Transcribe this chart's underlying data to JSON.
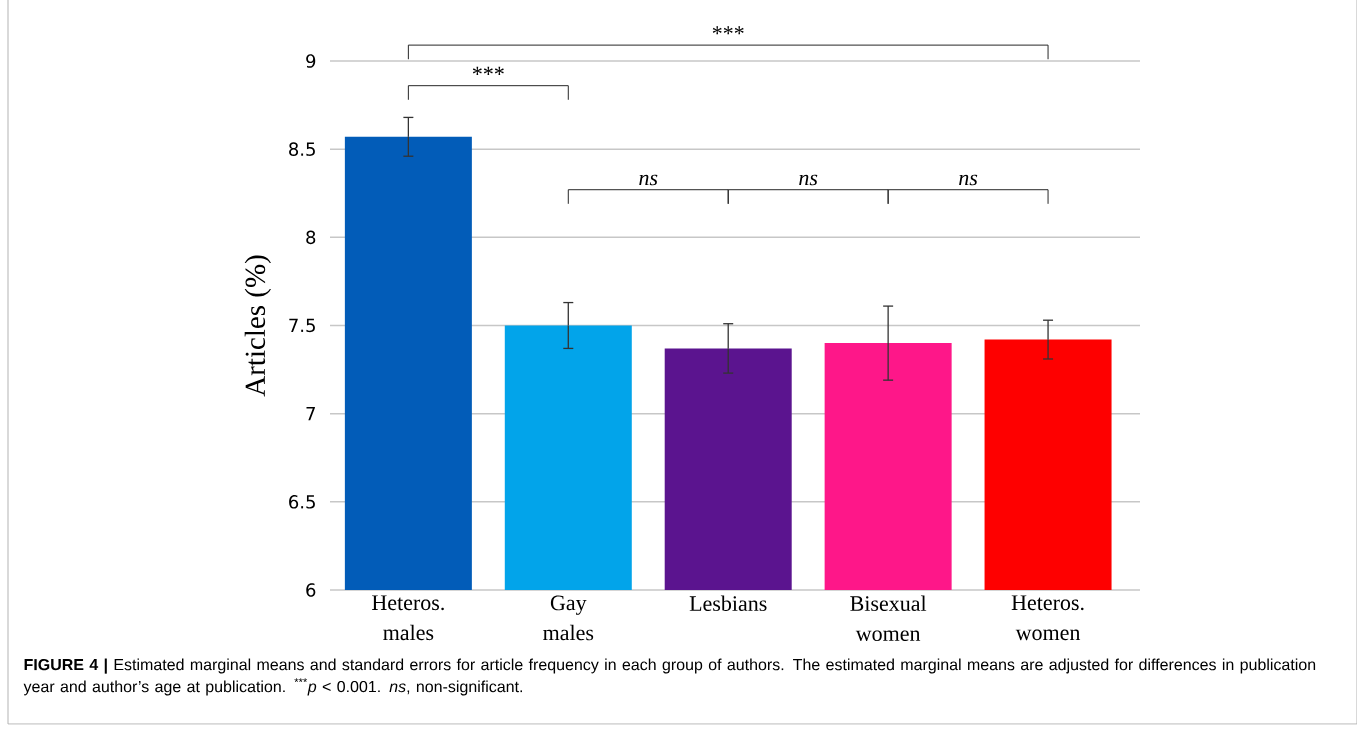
{
  "chart_data": {
    "type": "bar",
    "ylabel": "Articles (%)",
    "categories": [
      "Heteros. males",
      "Gay males",
      "Lesbians",
      "Bisexual women",
      "Heteros. women"
    ],
    "values": [
      8.57,
      7.5,
      7.37,
      7.4,
      7.42
    ],
    "errors": [
      0.11,
      0.13,
      0.14,
      0.21,
      0.11
    ],
    "colors": [
      "#025cb8",
      "#02a4ea",
      "#5b148f",
      "#fe1789",
      "#fe0000"
    ],
    "ylim": [
      6,
      9
    ],
    "yticks": [
      6,
      6.5,
      7,
      7.5,
      8,
      8.5,
      9
    ],
    "grid": "y",
    "annotations": [
      "***",
      "***",
      "*ns*",
      "*ns*",
      "*ns*",
      "**FIGURE 4 |** Estimated marginal means and standard errors for article frequency in each group of authors. The estimated marginal means are adjusted for differences in publication year and author’s age at publication. $^{***}$*p* < 0.001. *ns*, non-significant."
    ]
  }
}
